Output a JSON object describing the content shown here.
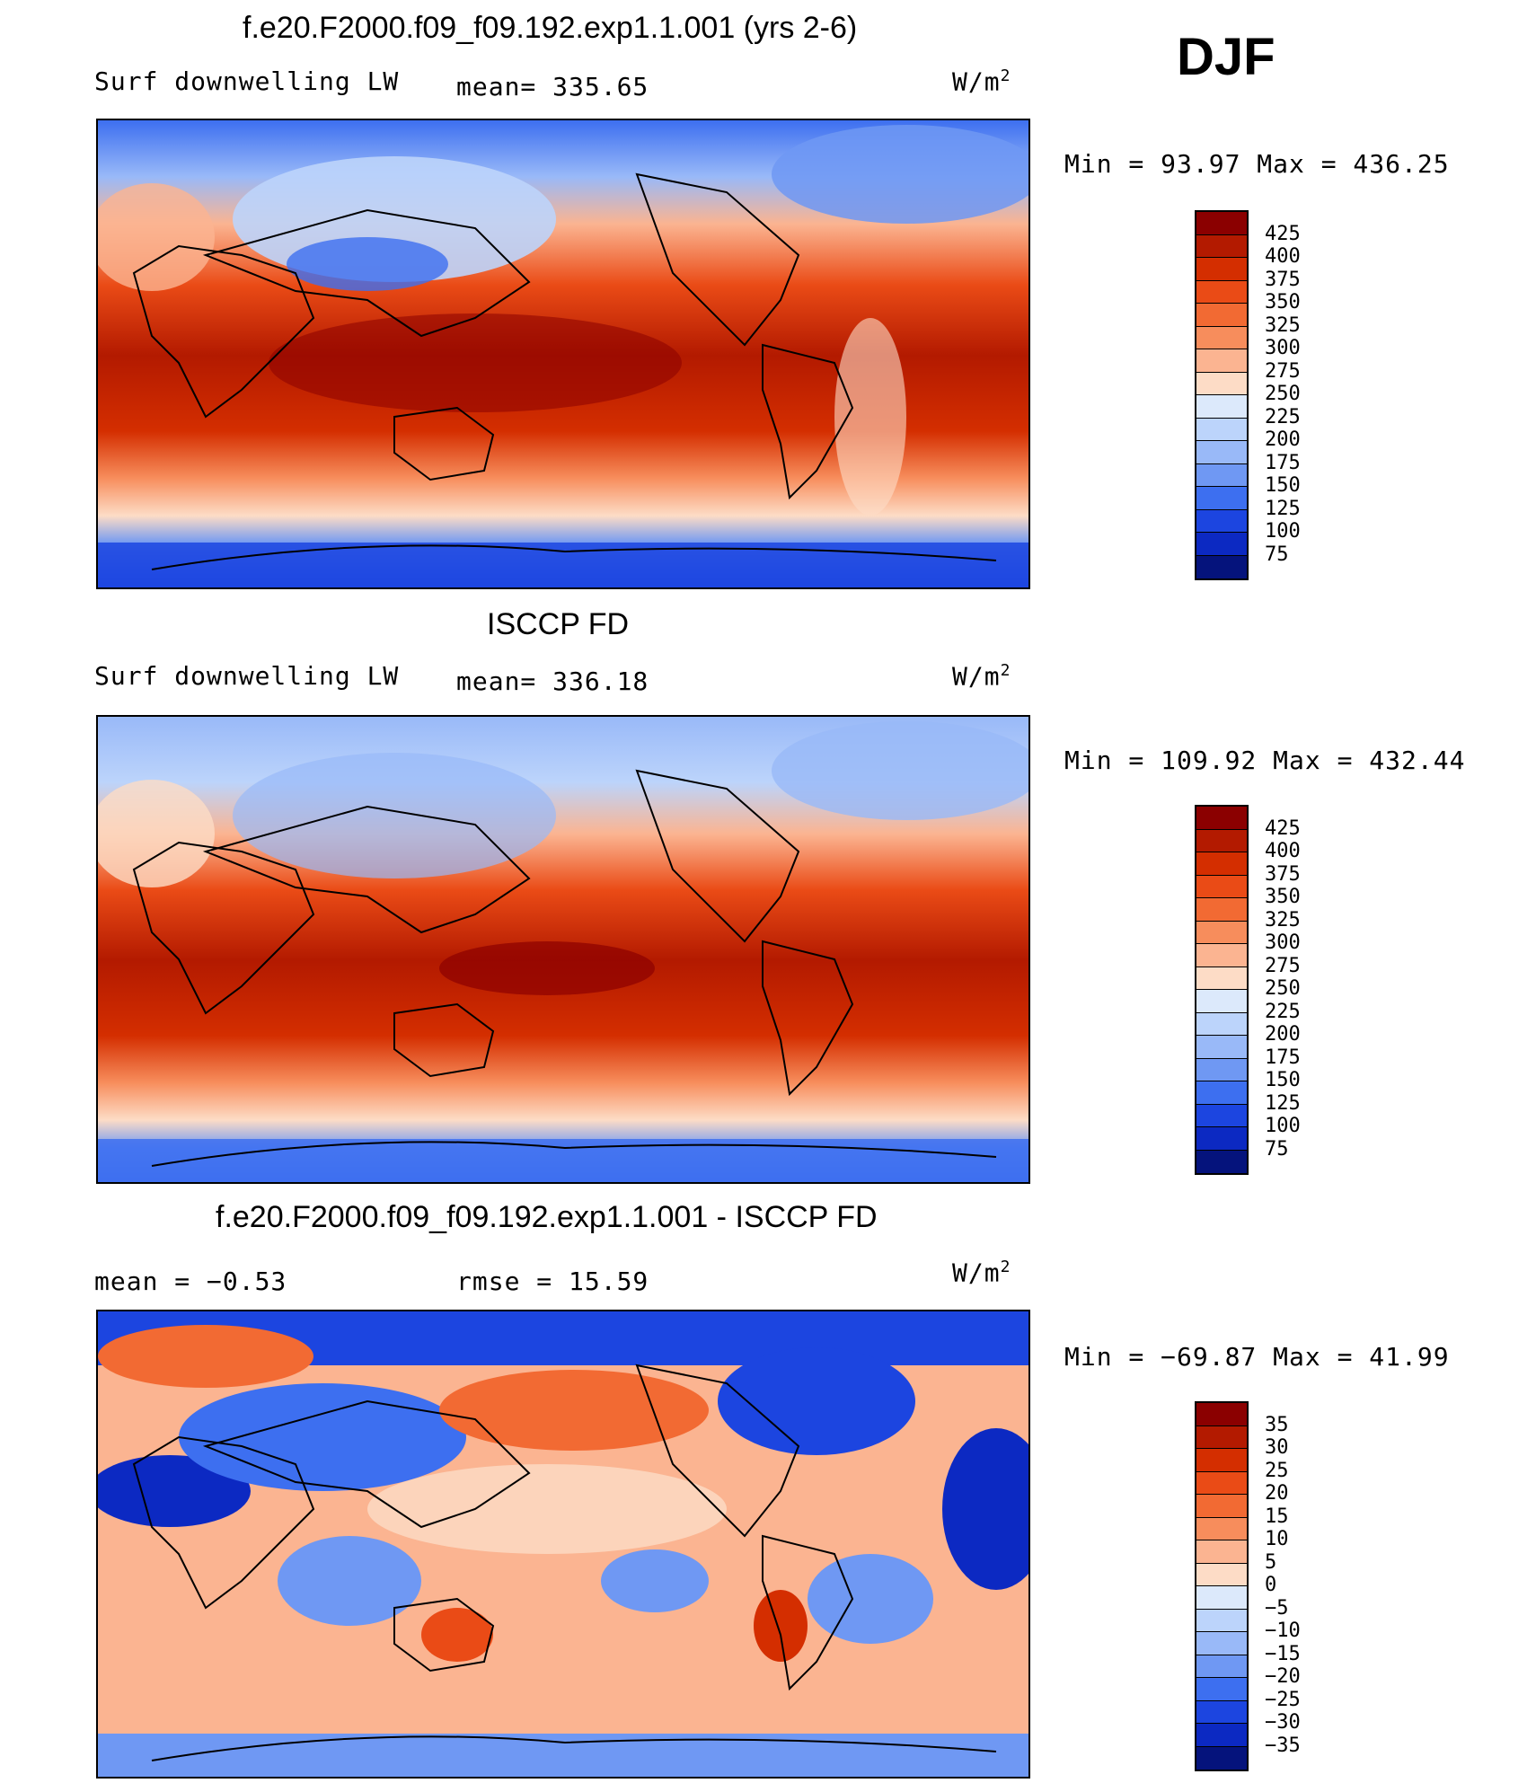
{
  "season": "DJF",
  "units": "W/m",
  "units_sup": "2",
  "panels": [
    {
      "title": "f.e20.F2000.f09_f09.192.exp1.1.001 (yrs 2-6)",
      "left_label": "Surf downwelling LW",
      "mid_label": "mean= 335.65",
      "minmax": "Min =   93.97 Max = 436.25",
      "levels": [
        "425",
        "400",
        "375",
        "350",
        "325",
        "300",
        "275",
        "250",
        "225",
        "200",
        "175",
        "150",
        "125",
        "100",
        "75"
      ],
      "colors": [
        "#8b0000",
        "#b31a00",
        "#d42e00",
        "#ea4b16",
        "#f26a33",
        "#f78d5c",
        "#fbb491",
        "#fddcc6",
        "#dce9fb",
        "#bcd4fb",
        "#99b9f8",
        "#6f98f3",
        "#3d6ff0",
        "#1c45e0",
        "#0c29c2",
        "#05137c"
      ]
    },
    {
      "title": "ISCCP FD",
      "left_label": "Surf downwelling LW",
      "mid_label": "mean= 336.18",
      "minmax": "Min = 109.92 Max = 432.44",
      "levels": [
        "425",
        "400",
        "375",
        "350",
        "325",
        "300",
        "275",
        "250",
        "225",
        "200",
        "175",
        "150",
        "125",
        "100",
        "75"
      ],
      "colors": [
        "#8b0000",
        "#b31a00",
        "#d42e00",
        "#ea4b16",
        "#f26a33",
        "#f78d5c",
        "#fbb491",
        "#fddcc6",
        "#dce9fb",
        "#bcd4fb",
        "#99b9f8",
        "#6f98f3",
        "#3d6ff0",
        "#1c45e0",
        "#0c29c2",
        "#05137c"
      ]
    },
    {
      "title": "f.e20.F2000.f09_f09.192.exp1.1.001 - ISCCP FD",
      "left_label": "mean =   −0.53",
      "mid_label": "rmse =   15.59",
      "minmax": "Min = −69.87 Max =   41.99",
      "levels": [
        "35",
        "30",
        "25",
        "20",
        "15",
        "10",
        "5",
        "0",
        "−5",
        "−10",
        "−15",
        "−20",
        "−25",
        "−30",
        "−35"
      ],
      "colors": [
        "#8b0000",
        "#b31a00",
        "#d42e00",
        "#ea4b16",
        "#f26a33",
        "#f78d5c",
        "#fbb491",
        "#fddcc6",
        "#dce9fb",
        "#bcd4fb",
        "#99b9f8",
        "#6f98f3",
        "#3d6ff0",
        "#1c45e0",
        "#0c29c2",
        "#05137c"
      ]
    }
  ]
}
